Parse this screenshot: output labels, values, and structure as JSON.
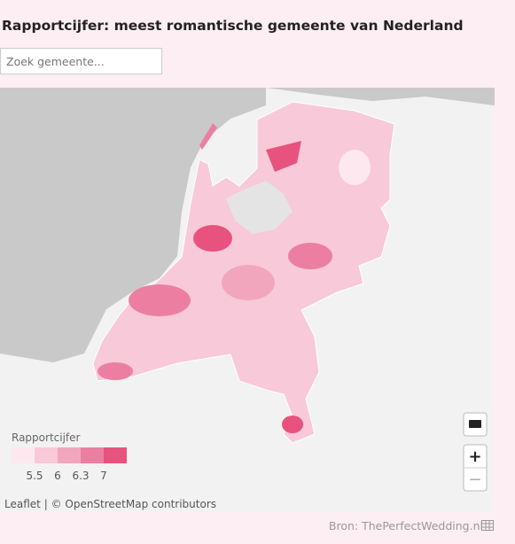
{
  "header": {
    "title": "Rapportcijfer: meest romantische gemeente van Nederland",
    "search_placeholder": "Zoek gemeente..."
  },
  "legend": {
    "title": "Rapportcijfer",
    "breaks": [
      5.5,
      6,
      6.3,
      7
    ],
    "colors": [
      "#fde8ef",
      "#f8c9d8",
      "#f2a6be",
      "#ec7fa1",
      "#e8527f"
    ]
  },
  "controls": {
    "zoom_in": "+",
    "zoom_out": "−"
  },
  "attribution": {
    "link": "Leaflet",
    "separator": "|",
    "text": "© OpenStreetMap contributors"
  },
  "footer": {
    "source": "Bron: ThePerfectWedding.nl"
  }
}
